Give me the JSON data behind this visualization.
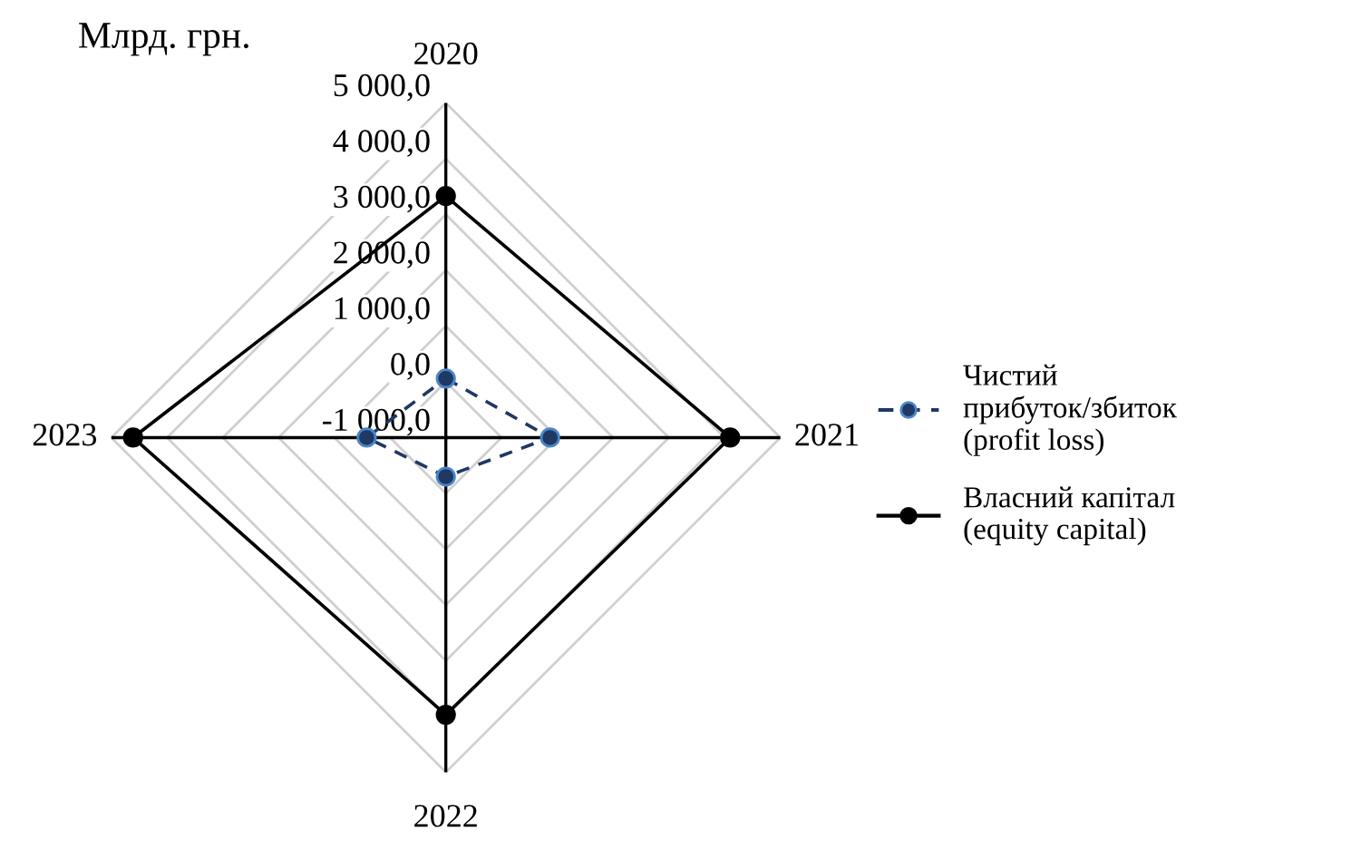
{
  "chart_data": {
    "type": "radar",
    "title": "Млрд. грн.",
    "categories": [
      "2020",
      "2021",
      "2022",
      "2023"
    ],
    "ylim": [
      -1000,
      5000
    ],
    "yticks": [
      {
        "value": -1000,
        "label": "-1 000,0"
      },
      {
        "value": 0,
        "label": "0,0"
      },
      {
        "value": 1000,
        "label": "1 000,0"
      },
      {
        "value": 2000,
        "label": "2 000,0"
      },
      {
        "value": 3000,
        "label": "3 000,0"
      },
      {
        "value": 4000,
        "label": "4 000,0"
      },
      {
        "value": 5000,
        "label": "5 000,0"
      }
    ],
    "grid": true,
    "legend": "right",
    "marker": "circle",
    "series": [
      {
        "name": "Чистий\nприбуток/збиток\n(profit loss)",
        "color": "#1f3864",
        "line_style": "dashed",
        "values": [
          60,
          870,
          -300,
          420
        ]
      },
      {
        "name": "Власний капітал\n(equity capital)",
        "color": "#000000",
        "line_style": "solid",
        "values": [
          3330,
          4100,
          3970,
          4610
        ]
      }
    ]
  }
}
